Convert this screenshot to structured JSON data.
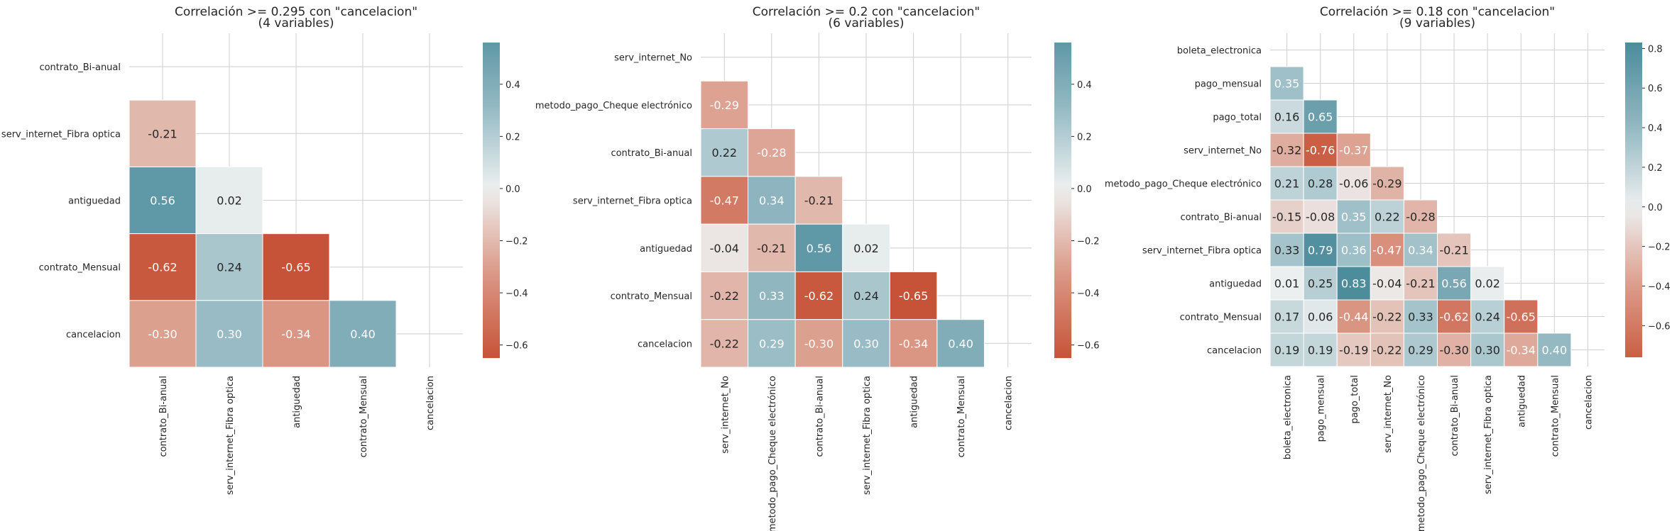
{
  "chart_data": [
    {
      "type": "heatmap",
      "title": "Correlación >= 0.295 con \"cancelacion\"",
      "subtitle": "(4 variables)",
      "variables": [
        "contrato_Bi-anual",
        "serv_internet_Fibra optica",
        "antiguedad",
        "contrato_Mensual",
        "cancelacion"
      ],
      "values": [
        [
          null,
          null,
          null,
          null,
          null
        ],
        [
          -0.21,
          null,
          null,
          null,
          null
        ],
        [
          0.56,
          0.02,
          null,
          null,
          null
        ],
        [
          -0.62,
          0.24,
          -0.65,
          null,
          null
        ],
        [
          -0.3,
          0.3,
          -0.34,
          0.4,
          null
        ]
      ],
      "annotations": [
        [
          null,
          null,
          null,
          null,
          null
        ],
        [
          "-0.21",
          null,
          null,
          null,
          null
        ],
        [
          "0.56",
          "0.02",
          null,
          null,
          null
        ],
        [
          "-0.62",
          "0.24",
          "-0.65",
          null,
          null
        ],
        [
          "-0.30",
          "0.30",
          "-0.34",
          "0.40",
          null
        ]
      ],
      "colorbar": {
        "vmin": -0.65,
        "vmax": 0.56,
        "ticks": [
          -0.6,
          -0.4,
          -0.2,
          0.0,
          0.2,
          0.4
        ],
        "tick_labels": [
          "−0.6",
          "−0.4",
          "−0.2",
          "0.0",
          "0.2",
          "0.4"
        ]
      },
      "grid": true
    },
    {
      "type": "heatmap",
      "title": "Correlación >= 0.2 con \"cancelacion\"",
      "subtitle": "(6 variables)",
      "variables": [
        "serv_internet_No",
        "metodo_pago_Cheque electrónico",
        "contrato_Bi-anual",
        "serv_internet_Fibra optica",
        "antiguedad",
        "contrato_Mensual",
        "cancelacion"
      ],
      "values": [
        [
          null,
          null,
          null,
          null,
          null,
          null,
          null
        ],
        [
          -0.29,
          null,
          null,
          null,
          null,
          null,
          null
        ],
        [
          0.22,
          -0.28,
          null,
          null,
          null,
          null,
          null
        ],
        [
          -0.47,
          0.34,
          -0.21,
          null,
          null,
          null,
          null
        ],
        [
          -0.04,
          -0.21,
          0.56,
          0.02,
          null,
          null,
          null
        ],
        [
          -0.22,
          0.33,
          -0.62,
          0.24,
          -0.65,
          null,
          null
        ],
        [
          -0.22,
          0.29,
          -0.3,
          0.3,
          -0.34,
          0.4,
          null
        ]
      ],
      "annotations": [
        [
          null,
          null,
          null,
          null,
          null,
          null,
          null
        ],
        [
          "-0.29",
          null,
          null,
          null,
          null,
          null,
          null
        ],
        [
          "0.22",
          "-0.28",
          null,
          null,
          null,
          null,
          null
        ],
        [
          "-0.47",
          "0.34",
          "-0.21",
          null,
          null,
          null,
          null
        ],
        [
          "-0.04",
          "-0.21",
          "0.56",
          "0.02",
          null,
          null,
          null
        ],
        [
          "-0.22",
          "0.33",
          "-0.62",
          "0.24",
          "-0.65",
          null,
          null
        ],
        [
          "-0.22",
          "0.29",
          "-0.30",
          "0.30",
          "-0.34",
          "0.40",
          null
        ]
      ],
      "colorbar": {
        "vmin": -0.65,
        "vmax": 0.56,
        "ticks": [
          -0.6,
          -0.4,
          -0.2,
          0.0,
          0.2,
          0.4
        ],
        "tick_labels": [
          "−0.6",
          "−0.4",
          "−0.2",
          "0.0",
          "0.2",
          "0.4"
        ]
      },
      "grid": true
    },
    {
      "type": "heatmap",
      "title": "Correlación >= 0.18 con \"cancelacion\"",
      "subtitle": "(9 variables)",
      "variables": [
        "boleta_electronica",
        "pago_mensual",
        "pago_total",
        "serv_internet_No",
        "metodo_pago_Cheque electrónico",
        "contrato_Bi-anual",
        "serv_internet_Fibra optica",
        "antiguedad",
        "contrato_Mensual",
        "cancelacion"
      ],
      "values": [
        [
          null,
          null,
          null,
          null,
          null,
          null,
          null,
          null,
          null,
          null
        ],
        [
          0.35,
          null,
          null,
          null,
          null,
          null,
          null,
          null,
          null,
          null
        ],
        [
          0.16,
          0.65,
          null,
          null,
          null,
          null,
          null,
          null,
          null,
          null
        ],
        [
          -0.32,
          -0.76,
          -0.37,
          null,
          null,
          null,
          null,
          null,
          null,
          null
        ],
        [
          0.21,
          0.28,
          -0.06,
          -0.29,
          null,
          null,
          null,
          null,
          null,
          null
        ],
        [
          -0.15,
          -0.08,
          0.35,
          0.22,
          -0.28,
          null,
          null,
          null,
          null,
          null
        ],
        [
          0.33,
          0.79,
          0.36,
          -0.47,
          0.34,
          -0.21,
          null,
          null,
          null,
          null
        ],
        [
          0.01,
          0.25,
          0.83,
          -0.04,
          -0.21,
          0.56,
          0.02,
          null,
          null,
          null
        ],
        [
          0.17,
          0.06,
          -0.44,
          -0.22,
          0.33,
          -0.62,
          0.24,
          -0.65,
          null,
          null
        ],
        [
          0.19,
          0.19,
          -0.19,
          -0.22,
          0.29,
          -0.3,
          0.3,
          -0.34,
          0.4,
          null
        ]
      ],
      "annotations": [
        [
          null,
          null,
          null,
          null,
          null,
          null,
          null,
          null,
          null,
          null
        ],
        [
          "0.35",
          null,
          null,
          null,
          null,
          null,
          null,
          null,
          null,
          null
        ],
        [
          "0.16",
          "0.65",
          null,
          null,
          null,
          null,
          null,
          null,
          null,
          null
        ],
        [
          "-0.32",
          "-0.76",
          "-0.37",
          null,
          null,
          null,
          null,
          null,
          null,
          null
        ],
        [
          "0.21",
          "0.28",
          "-0.06",
          "-0.29",
          null,
          null,
          null,
          null,
          null,
          null
        ],
        [
          "-0.15",
          "-0.08",
          "0.35",
          "0.22",
          "-0.28",
          null,
          null,
          null,
          null,
          null
        ],
        [
          "0.33",
          "0.79",
          "0.36",
          "-0.47",
          "0.34",
          "-0.21",
          null,
          null,
          null,
          null
        ],
        [
          "0.01",
          "0.25",
          "0.83",
          "-0.04",
          "-0.21",
          "0.56",
          "0.02",
          null,
          null,
          null
        ],
        [
          "0.17",
          "0.06",
          "-0.44",
          "-0.22",
          "0.33",
          "-0.62",
          "0.24",
          "-0.65",
          null,
          null
        ],
        [
          "0.19",
          "0.19",
          "-0.19",
          "-0.22",
          "0.29",
          "-0.30",
          "0.30",
          "-0.34",
          "0.40",
          null
        ]
      ],
      "colorbar": {
        "vmin": -0.76,
        "vmax": 0.83,
        "ticks": [
          -0.6,
          -0.4,
          -0.2,
          0.0,
          0.2,
          0.4,
          0.6,
          0.8
        ],
        "tick_labels": [
          "−0.6",
          "−0.4",
          "−0.2",
          "0.0",
          "0.2",
          "0.4",
          "0.6",
          "0.8"
        ]
      },
      "grid": true
    }
  ]
}
